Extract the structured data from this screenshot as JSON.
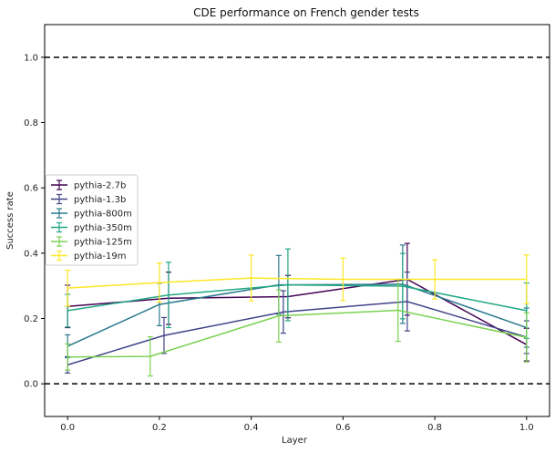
{
  "chart_data": {
    "type": "line",
    "title": "CDE performance on French gender tests",
    "xlabel": "Layer",
    "ylabel": "Success rate",
    "xlim": [
      -0.05,
      1.05
    ],
    "ylim": [
      -0.1,
      1.1
    ],
    "xticks": [
      "0.0",
      "0.2",
      "0.4",
      "0.6",
      "0.8",
      "1.0"
    ],
    "yticks": [
      "0.0",
      "0.2",
      "0.4",
      "0.6",
      "0.8",
      "1.0"
    ],
    "reference_lines": [
      0.0,
      1.0
    ],
    "legend_position": "center-left",
    "grid": false,
    "series": [
      {
        "name": "pythia-2.7b",
        "color": "#440154",
        "x": [
          0.0,
          0.22,
          0.48,
          0.74,
          1.0
        ],
        "y": [
          0.237,
          0.262,
          0.267,
          0.32,
          0.12
        ],
        "err": [
          0.065,
          0.08,
          0.065,
          0.11,
          0.05
        ]
      },
      {
        "name": "pythia-1.3b",
        "color": "#414487",
        "x": [
          0.0,
          0.21,
          0.47,
          0.74,
          1.0
        ],
        "y": [
          0.058,
          0.148,
          0.22,
          0.252,
          0.143
        ],
        "err": [
          0.025,
          0.055,
          0.065,
          0.09,
          0.05
        ]
      },
      {
        "name": "pythia-800m",
        "color": "#2a788e",
        "x": [
          0.0,
          0.2,
          0.46,
          0.73,
          1.0
        ],
        "y": [
          0.115,
          0.243,
          0.303,
          0.305,
          0.172
        ],
        "err": [
          0.035,
          0.065,
          0.09,
          0.12,
          0.06
        ]
      },
      {
        "name": "pythia-350m",
        "color": "#22a884",
        "x": [
          0.0,
          0.22,
          0.48,
          0.73,
          1.0
        ],
        "y": [
          0.224,
          0.272,
          0.303,
          0.299,
          0.224
        ],
        "err": [
          0.05,
          0.1,
          0.11,
          0.1,
          0.085
        ]
      },
      {
        "name": "pythia-125m",
        "color": "#7ad151",
        "x": [
          0.0,
          0.18,
          0.46,
          0.72,
          1.0
        ],
        "y": [
          0.082,
          0.084,
          0.208,
          0.225,
          0.142
        ],
        "err": [
          0.04,
          0.06,
          0.08,
          0.095,
          0.075
        ]
      },
      {
        "name": "pythia-19m",
        "color": "#fde725",
        "x": [
          0.0,
          0.2,
          0.4,
          0.6,
          0.8,
          1.0
        ],
        "y": [
          0.293,
          0.31,
          0.324,
          0.32,
          0.32,
          0.32
        ],
        "err": [
          0.055,
          0.06,
          0.07,
          0.065,
          0.06,
          0.075
        ]
      }
    ]
  }
}
